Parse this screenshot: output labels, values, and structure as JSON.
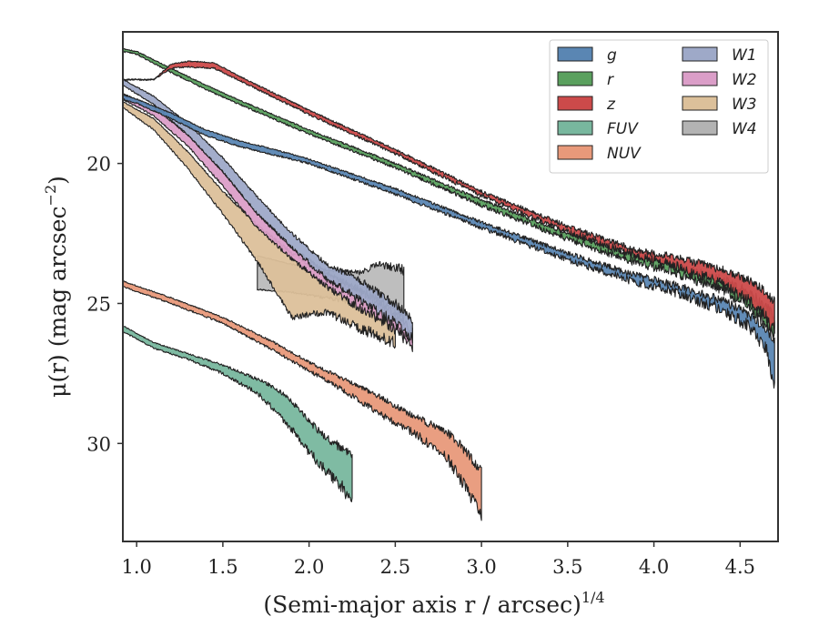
{
  "chart_data": {
    "type": "area",
    "xlabel": "(Semi-major axis r / arcsec)",
    "xlabel_superscript": "1/4",
    "ylabel": "μ(r) (mag arcsec",
    "ylabel_superscript": "−2",
    "ylabel_suffix": ")",
    "xlim": [
      0.92,
      4.72
    ],
    "ylim": [
      33.5,
      15.3
    ],
    "y_inverted": true,
    "xticks": [
      1.0,
      1.5,
      2.0,
      2.5,
      3.0,
      3.5,
      4.0,
      4.5
    ],
    "xtick_labels": [
      "1.0",
      "1.5",
      "2.0",
      "2.5",
      "3.0",
      "3.5",
      "4.0",
      "4.5"
    ],
    "yticks": [
      20,
      25,
      30
    ],
    "ytick_labels": [
      "20",
      "25",
      "30"
    ],
    "grid": false,
    "legend_position": "top-right",
    "legend_columns": 2,
    "series": [
      {
        "name": "g",
        "color": "#5a86b3",
        "upper": [
          [
            0.92,
            17.55
          ],
          [
            1.0,
            17.7
          ],
          [
            1.2,
            18.2
          ],
          [
            1.4,
            18.8
          ],
          [
            1.6,
            19.2
          ],
          [
            1.8,
            19.5
          ],
          [
            2.0,
            19.85
          ],
          [
            2.5,
            20.9
          ],
          [
            3.0,
            22.1
          ],
          [
            3.5,
            23.2
          ],
          [
            3.9,
            24.0
          ],
          [
            4.1,
            24.3
          ],
          [
            4.4,
            24.9
          ],
          [
            4.55,
            25.4
          ],
          [
            4.65,
            25.9
          ],
          [
            4.7,
            26.3
          ]
        ],
        "lower": [
          [
            0.92,
            17.7
          ],
          [
            1.0,
            17.85
          ],
          [
            1.2,
            18.4
          ],
          [
            1.4,
            19.0
          ],
          [
            1.6,
            19.4
          ],
          [
            1.8,
            19.7
          ],
          [
            2.0,
            20.0
          ],
          [
            2.5,
            21.1
          ],
          [
            3.0,
            22.3
          ],
          [
            3.5,
            23.45
          ],
          [
            3.9,
            24.25
          ],
          [
            4.1,
            24.55
          ],
          [
            4.4,
            25.25
          ],
          [
            4.55,
            25.8
          ],
          [
            4.65,
            26.6
          ],
          [
            4.7,
            28.0
          ]
        ]
      },
      {
        "name": "r",
        "color": "#5aa05e",
        "upper": [
          [
            0.92,
            15.9
          ],
          [
            1.0,
            16.0
          ],
          [
            1.2,
            16.6
          ],
          [
            1.4,
            17.2
          ],
          [
            1.6,
            17.75
          ],
          [
            2.0,
            18.8
          ],
          [
            2.5,
            20.0
          ],
          [
            3.0,
            21.3
          ],
          [
            3.5,
            22.5
          ],
          [
            3.9,
            23.3
          ],
          [
            4.1,
            23.6
          ],
          [
            4.4,
            24.15
          ],
          [
            4.55,
            24.6
          ],
          [
            4.65,
            25.1
          ],
          [
            4.7,
            25.5
          ]
        ],
        "lower": [
          [
            0.92,
            16.0
          ],
          [
            1.0,
            16.1
          ],
          [
            1.2,
            16.75
          ],
          [
            1.4,
            17.35
          ],
          [
            1.6,
            17.9
          ],
          [
            2.0,
            18.95
          ],
          [
            2.5,
            20.15
          ],
          [
            3.0,
            21.5
          ],
          [
            3.5,
            22.7
          ],
          [
            3.9,
            23.55
          ],
          [
            4.1,
            23.85
          ],
          [
            4.4,
            24.5
          ],
          [
            4.55,
            25.1
          ],
          [
            4.65,
            25.7
          ],
          [
            4.7,
            26.3
          ]
        ]
      },
      {
        "name": "z",
        "color": "#cc4a4a",
        "upper": [
          [
            0.92,
            17.0
          ],
          [
            1.1,
            17.0
          ],
          [
            1.2,
            16.45
          ],
          [
            1.3,
            16.35
          ],
          [
            1.45,
            16.4
          ],
          [
            1.6,
            16.9
          ],
          [
            2.0,
            18.1
          ],
          [
            2.5,
            19.5
          ],
          [
            3.0,
            21.0
          ],
          [
            3.5,
            22.25
          ],
          [
            3.9,
            23.1
          ],
          [
            4.1,
            23.3
          ],
          [
            4.4,
            23.8
          ],
          [
            4.55,
            24.2
          ],
          [
            4.65,
            24.6
          ],
          [
            4.7,
            24.9
          ]
        ],
        "lower": [
          [
            0.92,
            17.0
          ],
          [
            1.1,
            17.0
          ],
          [
            1.2,
            16.6
          ],
          [
            1.3,
            16.55
          ],
          [
            1.45,
            16.6
          ],
          [
            1.6,
            17.05
          ],
          [
            2.0,
            18.25
          ],
          [
            2.5,
            19.65
          ],
          [
            3.0,
            21.15
          ],
          [
            3.5,
            22.45
          ],
          [
            3.9,
            23.3
          ],
          [
            4.1,
            23.6
          ],
          [
            4.4,
            24.3
          ],
          [
            4.55,
            24.9
          ],
          [
            4.65,
            25.5
          ],
          [
            4.7,
            26.0
          ]
        ]
      },
      {
        "name": "FUV",
        "color": "#78b79e",
        "upper": [
          [
            0.92,
            25.8
          ],
          [
            1.1,
            26.4
          ],
          [
            1.3,
            26.8
          ],
          [
            1.5,
            27.2
          ],
          [
            1.7,
            27.7
          ],
          [
            1.8,
            28.0
          ],
          [
            1.9,
            28.5
          ],
          [
            2.0,
            29.2
          ],
          [
            2.1,
            29.8
          ],
          [
            2.2,
            30.2
          ],
          [
            2.25,
            30.5
          ]
        ],
        "lower": [
          [
            0.92,
            26.0
          ],
          [
            1.1,
            26.6
          ],
          [
            1.3,
            27.0
          ],
          [
            1.5,
            27.5
          ],
          [
            1.7,
            28.2
          ],
          [
            1.8,
            28.8
          ],
          [
            1.9,
            29.5
          ],
          [
            2.0,
            30.3
          ],
          [
            2.1,
            31.0
          ],
          [
            2.2,
            31.6
          ],
          [
            2.25,
            32.2
          ]
        ]
      },
      {
        "name": "NUV",
        "color": "#e8997a",
        "upper": [
          [
            0.92,
            24.2
          ],
          [
            1.2,
            24.8
          ],
          [
            1.5,
            25.5
          ],
          [
            1.8,
            26.4
          ],
          [
            2.0,
            27.1
          ],
          [
            2.2,
            27.7
          ],
          [
            2.4,
            28.3
          ],
          [
            2.6,
            29.0
          ],
          [
            2.8,
            29.6
          ],
          [
            2.9,
            30.2
          ],
          [
            3.0,
            31.0
          ]
        ],
        "lower": [
          [
            0.92,
            24.4
          ],
          [
            1.2,
            25.0
          ],
          [
            1.5,
            25.7
          ],
          [
            1.8,
            26.7
          ],
          [
            2.0,
            27.4
          ],
          [
            2.2,
            28.1
          ],
          [
            2.4,
            28.9
          ],
          [
            2.6,
            29.6
          ],
          [
            2.8,
            30.5
          ],
          [
            2.9,
            31.5
          ],
          [
            3.0,
            32.6
          ]
        ]
      },
      {
        "name": "W1",
        "color": "#9ea9c8",
        "upper": [
          [
            0.92,
            17.0
          ],
          [
            1.1,
            17.6
          ],
          [
            1.3,
            18.6
          ],
          [
            1.5,
            19.8
          ],
          [
            1.7,
            21.2
          ],
          [
            1.9,
            22.5
          ],
          [
            2.1,
            23.6
          ],
          [
            2.3,
            24.2
          ],
          [
            2.5,
            25.0
          ],
          [
            2.6,
            25.6
          ]
        ],
        "lower": [
          [
            0.92,
            17.2
          ],
          [
            1.1,
            17.9
          ],
          [
            1.3,
            19.0
          ],
          [
            1.5,
            20.3
          ],
          [
            1.7,
            21.8
          ],
          [
            1.9,
            23.0
          ],
          [
            2.1,
            24.1
          ],
          [
            2.3,
            24.9
          ],
          [
            2.5,
            25.7
          ],
          [
            2.6,
            26.3
          ]
        ]
      },
      {
        "name": "W2",
        "color": "#db9ec8",
        "upper": [
          [
            0.92,
            17.5
          ],
          [
            1.1,
            18.0
          ],
          [
            1.3,
            19.0
          ],
          [
            1.5,
            20.3
          ],
          [
            1.7,
            21.8
          ],
          [
            1.9,
            23.0
          ],
          [
            2.1,
            23.9
          ],
          [
            2.3,
            24.6
          ],
          [
            2.5,
            25.4
          ],
          [
            2.6,
            26.0
          ]
        ],
        "lower": [
          [
            0.92,
            17.7
          ],
          [
            1.1,
            18.3
          ],
          [
            1.3,
            19.4
          ],
          [
            1.5,
            20.8
          ],
          [
            1.7,
            22.3
          ],
          [
            1.9,
            23.4
          ],
          [
            2.1,
            24.4
          ],
          [
            2.3,
            25.2
          ],
          [
            2.5,
            25.9
          ],
          [
            2.6,
            26.5
          ]
        ]
      },
      {
        "name": "W3",
        "color": "#dcc09a",
        "upper": [
          [
            0.92,
            17.8
          ],
          [
            1.1,
            18.4
          ],
          [
            1.3,
            19.6
          ],
          [
            1.5,
            21.0
          ],
          [
            1.7,
            22.2
          ],
          [
            1.9,
            23.2
          ],
          [
            2.1,
            24.0
          ],
          [
            2.3,
            24.5
          ],
          [
            2.5,
            25.2
          ]
        ],
        "lower": [
          [
            0.92,
            18.0
          ],
          [
            1.1,
            18.8
          ],
          [
            1.3,
            20.2
          ],
          [
            1.5,
            21.8
          ],
          [
            1.7,
            23.5
          ],
          [
            1.9,
            25.5
          ],
          [
            2.1,
            25.3
          ],
          [
            2.3,
            25.9
          ],
          [
            2.5,
            26.4
          ]
        ]
      },
      {
        "name": "W4",
        "color": "#b3b3b3",
        "upper": [
          [
            1.7,
            23.3
          ],
          [
            1.9,
            23.6
          ],
          [
            2.1,
            23.8
          ],
          [
            2.3,
            23.9
          ],
          [
            2.4,
            23.6
          ],
          [
            2.55,
            23.8
          ]
        ],
        "lower": [
          [
            1.7,
            24.5
          ],
          [
            1.9,
            24.6
          ],
          [
            2.1,
            24.8
          ],
          [
            2.3,
            25.0
          ],
          [
            2.4,
            25.4
          ],
          [
            2.55,
            25.5
          ]
        ]
      }
    ]
  }
}
